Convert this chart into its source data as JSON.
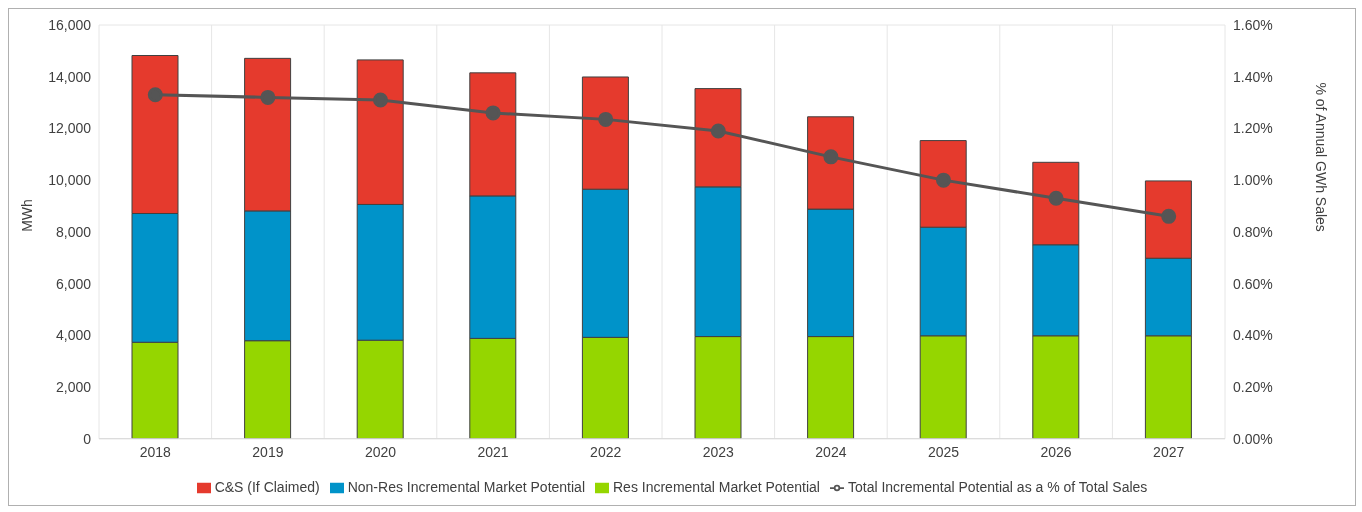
{
  "chart_data": {
    "type": "bar",
    "stacked": true,
    "ylabel": "MWh",
    "y2label": "% of Annual GWh Sales",
    "categories": [
      "2018",
      "2019",
      "2020",
      "2021",
      "2022",
      "2023",
      "2024",
      "2025",
      "2026",
      "2027"
    ],
    "series": [
      {
        "name": "Res Incremental Market Potential",
        "color": "#95d600",
        "values": [
          3730,
          3790,
          3810,
          3880,
          3920,
          3950,
          3950,
          3980,
          3980,
          3980
        ]
      },
      {
        "name": "Non-Res Incremental Market Potential",
        "color": "#0093c9",
        "values": [
          4980,
          5020,
          5250,
          5510,
          5730,
          5790,
          4930,
          4200,
          3520,
          3000
        ]
      },
      {
        "name": "C&S (If Claimed)",
        "color": "#e53a2d",
        "values": [
          6110,
          5900,
          5590,
          4760,
          4340,
          3800,
          3570,
          3350,
          3190,
          2990
        ]
      },
      {
        "name": "Total Incremental Potential as a % of Total Sales",
        "type": "line",
        "axis": "y2",
        "color": "#555555",
        "marker": "circle",
        "line_style": "solid",
        "values": [
          1.33,
          1.32,
          1.31,
          1.26,
          1.235,
          1.19,
          1.09,
          1.0,
          0.93,
          0.86
        ]
      }
    ],
    "ylim": [
      0,
      16000
    ],
    "yticks": [
      {
        "value": 0,
        "label": "0"
      },
      {
        "value": 2000,
        "label": "2,000"
      },
      {
        "value": 4000,
        "label": "4,000"
      },
      {
        "value": 6000,
        "label": "6,000"
      },
      {
        "value": 8000,
        "label": "8,000"
      },
      {
        "value": 10000,
        "label": "10,000"
      },
      {
        "value": 12000,
        "label": "12,000"
      },
      {
        "value": 14000,
        "label": "14,000"
      },
      {
        "value": 16000,
        "label": "16,000"
      }
    ],
    "y2lim": [
      0,
      1.6
    ],
    "y2ticks": [
      {
        "value": 0,
        "label": "0.00%"
      },
      {
        "value": 0.2,
        "label": "0.20%"
      },
      {
        "value": 0.4,
        "label": "0.40%"
      },
      {
        "value": 0.6,
        "label": "0.60%"
      },
      {
        "value": 0.8,
        "label": "0.80%"
      },
      {
        "value": 1.0,
        "label": "1.00%"
      },
      {
        "value": 1.2,
        "label": "1.20%"
      },
      {
        "value": 1.4,
        "label": "1.40%"
      },
      {
        "value": 1.6,
        "label": "1.60%"
      }
    ],
    "grid": true,
    "legend": "bottom"
  }
}
